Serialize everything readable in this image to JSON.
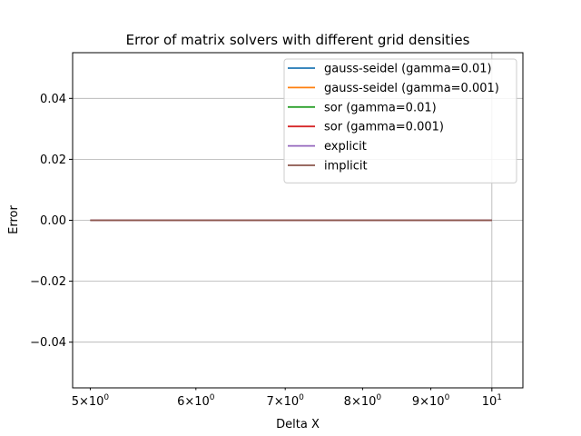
{
  "chart_data": {
    "type": "line",
    "title": "Error of matrix solvers with different grid densities",
    "xlabel": "Delta X",
    "ylabel": "Error",
    "xscale": "log",
    "xlim": [
      4.85,
      10.55
    ],
    "ylim": [
      -0.055,
      0.055
    ],
    "x_ticks": [
      {
        "value": 5,
        "base": "5",
        "mult": "×10",
        "exp": "0"
      },
      {
        "value": 6,
        "base": "6",
        "mult": "×10",
        "exp": "0"
      },
      {
        "value": 7,
        "base": "7",
        "mult": "×10",
        "exp": "0"
      },
      {
        "value": 8,
        "base": "8",
        "mult": "×10",
        "exp": "0"
      },
      {
        "value": 9,
        "base": "9",
        "mult": "×10",
        "exp": "0"
      },
      {
        "value": 10,
        "base": "",
        "mult": "10",
        "exp": "1"
      }
    ],
    "y_ticks": [
      {
        "value": 0.04,
        "label": "0.04"
      },
      {
        "value": 0.02,
        "label": "0.02"
      },
      {
        "value": 0.0,
        "label": "0.00"
      },
      {
        "value": -0.02,
        "label": "−0.02"
      },
      {
        "value": -0.04,
        "label": "−0.04"
      }
    ],
    "grid": true,
    "legend_position": "top-right",
    "x": [
      5,
      10
    ],
    "series": [
      {
        "name": "gauss-seidel (gamma=0.01)",
        "color": "#1f77b4",
        "values": [
          0,
          0
        ]
      },
      {
        "name": "gauss-seidel (gamma=0.001)",
        "color": "#ff7f0e",
        "values": [
          0,
          0
        ]
      },
      {
        "name": "sor (gamma=0.01)",
        "color": "#2ca02c",
        "values": [
          0,
          0
        ]
      },
      {
        "name": "sor (gamma=0.001)",
        "color": "#d62728",
        "values": [
          0,
          0
        ]
      },
      {
        "name": "explicit",
        "color": "#9467bd",
        "values": [
          0,
          0
        ]
      },
      {
        "name": "implicit",
        "color": "#8c564b",
        "values": [
          0,
          0
        ]
      }
    ]
  }
}
